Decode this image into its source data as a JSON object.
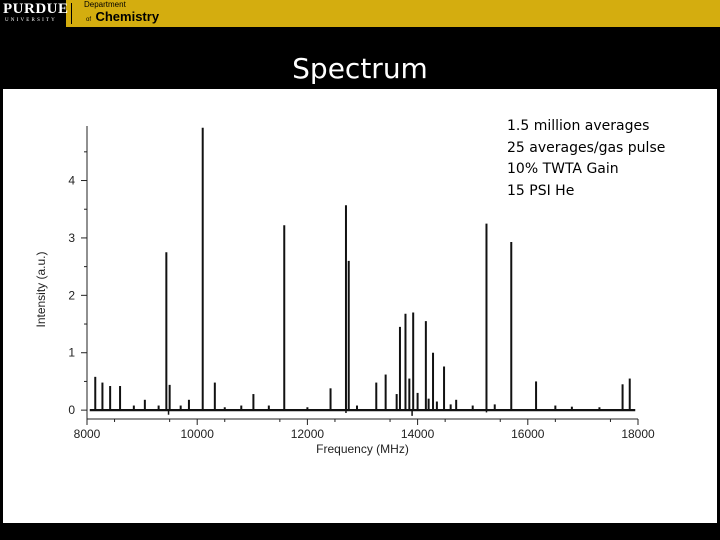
{
  "header": {
    "logo_word": "PURDUE",
    "logo_sub": "UNIVERSITY",
    "dept_line1": "Department",
    "dept_line2": "of",
    "dept_line3": "Chemistry"
  },
  "slide": {
    "title": "Spectrum",
    "notes": [
      "1.5 million averages",
      "25 averages/gas pulse",
      "10% TWTA Gain",
      "15 PSI He"
    ]
  },
  "colors": {
    "gold": "#d4ad0f",
    "black": "#000000",
    "white": "#ffffff"
  },
  "chart_data": {
    "type": "line",
    "xlabel": "Frequency (MHz)",
    "ylabel": "Intensity (a.u.)",
    "xlim": [
      8000,
      18000
    ],
    "ylim": [
      -0.05,
      4.95
    ],
    "xticks": [
      8000,
      10000,
      12000,
      14000,
      16000,
      18000
    ],
    "yticks": [
      0,
      1,
      2,
      3,
      4
    ],
    "grid": false,
    "series": [
      {
        "peaks": [
          {
            "x": 8150,
            "y": 0.58
          },
          {
            "x": 8280,
            "y": 0.48
          },
          {
            "x": 8420,
            "y": 0.42
          },
          {
            "x": 8600,
            "y": 0.42
          },
          {
            "x": 8850,
            "y": 0.08
          },
          {
            "x": 9050,
            "y": 0.18
          },
          {
            "x": 9300,
            "y": 0.08
          },
          {
            "x": 9440,
            "y": 2.75
          },
          {
            "x": 9500,
            "y": 0.44
          },
          {
            "x": 9700,
            "y": 0.08
          },
          {
            "x": 9850,
            "y": 0.18
          },
          {
            "x": 10100,
            "y": 4.92
          },
          {
            "x": 10320,
            "y": 0.48
          },
          {
            "x": 10500,
            "y": 0.05
          },
          {
            "x": 10800,
            "y": 0.08
          },
          {
            "x": 11020,
            "y": 0.28
          },
          {
            "x": 11300,
            "y": 0.08
          },
          {
            "x": 11580,
            "y": 3.22
          },
          {
            "x": 12000,
            "y": 0.05
          },
          {
            "x": 12420,
            "y": 0.38
          },
          {
            "x": 12700,
            "y": 3.57
          },
          {
            "x": 12750,
            "y": 2.6
          },
          {
            "x": 12900,
            "y": 0.08
          },
          {
            "x": 13250,
            "y": 0.48
          },
          {
            "x": 13420,
            "y": 0.62
          },
          {
            "x": 13620,
            "y": 0.28
          },
          {
            "x": 13680,
            "y": 1.45
          },
          {
            "x": 13780,
            "y": 1.68
          },
          {
            "x": 13850,
            "y": 0.55
          },
          {
            "x": 13920,
            "y": 1.7
          },
          {
            "x": 14000,
            "y": 0.3
          },
          {
            "x": 14150,
            "y": 1.55
          },
          {
            "x": 14200,
            "y": 0.2
          },
          {
            "x": 14280,
            "y": 1.0
          },
          {
            "x": 14350,
            "y": 0.15
          },
          {
            "x": 14480,
            "y": 0.76
          },
          {
            "x": 14600,
            "y": 0.1
          },
          {
            "x": 14700,
            "y": 0.18
          },
          {
            "x": 15000,
            "y": 0.08
          },
          {
            "x": 15250,
            "y": 3.25
          },
          {
            "x": 15400,
            "y": 0.1
          },
          {
            "x": 15700,
            "y": 2.93
          },
          {
            "x": 16150,
            "y": 0.5
          },
          {
            "x": 16500,
            "y": 0.08
          },
          {
            "x": 16800,
            "y": 0.06
          },
          {
            "x": 17300,
            "y": 0.05
          },
          {
            "x": 17720,
            "y": 0.45
          },
          {
            "x": 17850,
            "y": 0.55
          }
        ]
      }
    ]
  }
}
